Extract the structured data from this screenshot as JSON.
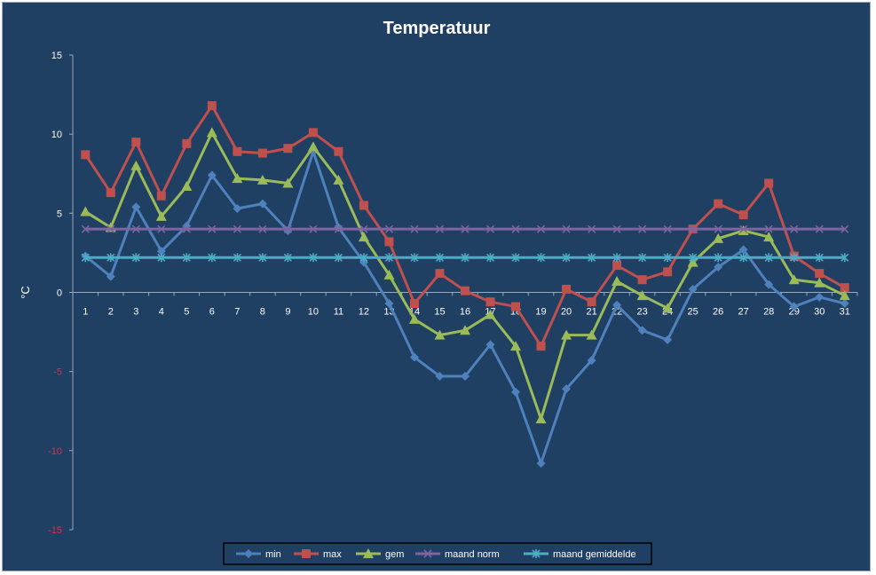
{
  "chart_data": {
    "type": "line",
    "title": "Temperatuur",
    "ylabel": "°C",
    "xlabel": "",
    "ylim": [
      -15,
      15
    ],
    "yticks": [
      15,
      10,
      5,
      0,
      -5,
      -10,
      -15
    ],
    "x": [
      1,
      2,
      3,
      4,
      5,
      6,
      7,
      8,
      9,
      10,
      11,
      12,
      13,
      14,
      15,
      16,
      17,
      18,
      19,
      20,
      21,
      22,
      23,
      24,
      25,
      26,
      27,
      28,
      29,
      30,
      31
    ],
    "legend_position": "bottom",
    "series": [
      {
        "name": "min",
        "color": "#4f81bd",
        "marker": "diamond",
        "values": [
          2.3,
          1.0,
          5.4,
          2.6,
          4.2,
          7.4,
          5.3,
          5.6,
          3.9,
          8.9,
          4.1,
          1.9,
          -0.7,
          -4.1,
          -5.3,
          -5.3,
          -3.3,
          -6.3,
          -10.8,
          -6.1,
          -4.3,
          -0.8,
          -2.4,
          -3.0,
          0.2,
          1.6,
          2.7,
          0.5,
          -0.9,
          -0.3,
          -0.7
        ]
      },
      {
        "name": "max",
        "color": "#c0504d",
        "marker": "square",
        "values": [
          8.7,
          6.3,
          9.5,
          6.1,
          9.4,
          11.8,
          8.9,
          8.8,
          9.1,
          10.1,
          8.9,
          5.5,
          3.2,
          -0.7,
          1.2,
          0.1,
          -0.6,
          -0.9,
          -3.4,
          0.2,
          -0.6,
          1.7,
          0.8,
          1.3,
          4.0,
          5.6,
          4.9,
          6.9,
          2.3,
          1.2,
          0.3
        ]
      },
      {
        "name": "gem",
        "color": "#9bbb59",
        "marker": "triangle",
        "values": [
          5.1,
          4.1,
          8.0,
          4.8,
          6.7,
          10.1,
          7.2,
          7.1,
          6.9,
          9.2,
          7.1,
          3.5,
          1.1,
          -1.7,
          -2.7,
          -2.4,
          -1.4,
          -3.4,
          -8.0,
          -2.7,
          -2.7,
          0.7,
          -0.2,
          -1.0,
          1.9,
          3.4,
          3.9,
          3.5,
          0.8,
          0.6,
          -0.2
        ]
      },
      {
        "name": "maand norm",
        "color": "#8064a2",
        "marker": "x",
        "values": [
          4.0,
          4.0,
          4.0,
          4.0,
          4.0,
          4.0,
          4.0,
          4.0,
          4.0,
          4.0,
          4.0,
          4.0,
          4.0,
          4.0,
          4.0,
          4.0,
          4.0,
          4.0,
          4.0,
          4.0,
          4.0,
          4.0,
          4.0,
          4.0,
          4.0,
          4.0,
          4.0,
          4.0,
          4.0,
          4.0,
          4.0
        ]
      },
      {
        "name": "maand gemiddelde",
        "color": "#4bacc6",
        "marker": "star",
        "values": [
          2.2,
          2.2,
          2.2,
          2.2,
          2.2,
          2.2,
          2.2,
          2.2,
          2.2,
          2.2,
          2.2,
          2.2,
          2.2,
          2.2,
          2.2,
          2.2,
          2.2,
          2.2,
          2.2,
          2.2,
          2.2,
          2.2,
          2.2,
          2.2,
          2.2,
          2.2,
          2.2,
          2.2,
          2.2,
          2.2,
          2.2
        ]
      }
    ]
  }
}
